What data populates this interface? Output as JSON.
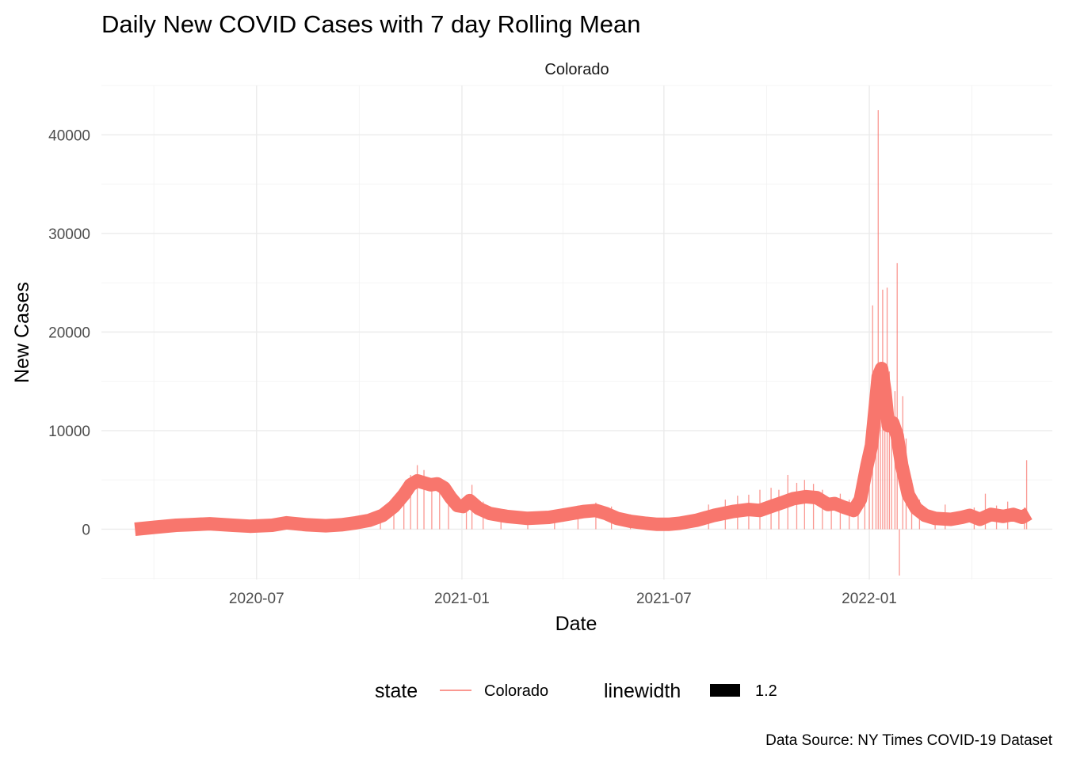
{
  "colors": {
    "series": "#F8766D",
    "daily_bars": "#F8766D",
    "rolling_line": "#F8766D",
    "linewidth_key": "#000000"
  },
  "chart_data": {
    "type": "line",
    "title": "Daily New COVID Cases with 7 day Rolling Mean",
    "facet": "Colorado",
    "xlabel": "Date",
    "ylabel": "New Cases",
    "caption": "Data Source: NY Times COVID-19 Dataset",
    "x_axis": {
      "type": "date",
      "ticks": [
        "2020-07-01",
        "2021-01-01",
        "2021-07-01",
        "2022-01-01"
      ],
      "tick_labels": [
        "2020-07",
        "2021-01",
        "2021-07",
        "2022-01"
      ],
      "range": [
        "2020-02-13",
        "2022-06-14"
      ]
    },
    "y_axis": {
      "ticks": [
        0,
        10000,
        20000,
        30000,
        40000
      ],
      "tick_labels": [
        "0",
        "10000",
        "20000",
        "30000",
        "40000"
      ],
      "range": [
        -5100,
        45000
      ]
    },
    "grid": true,
    "legend": {
      "placement": "bottom",
      "items": [
        {
          "title": "state",
          "label": "Colorado",
          "key": "line"
        },
        {
          "title": "linewidth",
          "label": "1.2",
          "key": "fill"
        }
      ]
    },
    "series": [
      {
        "name": "Colorado",
        "kind": "rolling_mean",
        "x": [
          "2020-03-14",
          "2020-04-01",
          "2020-04-20",
          "2020-05-01",
          "2020-05-20",
          "2020-06-10",
          "2020-06-25",
          "2020-07-15",
          "2020-07-28",
          "2020-08-15",
          "2020-09-01",
          "2020-09-15",
          "2020-09-28",
          "2020-10-10",
          "2020-10-22",
          "2020-11-01",
          "2020-11-10",
          "2020-11-16",
          "2020-11-22",
          "2020-11-28",
          "2020-12-04",
          "2020-12-10",
          "2020-12-16",
          "2020-12-22",
          "2020-12-28",
          "2021-01-02",
          "2021-01-08",
          "2021-01-16",
          "2021-01-26",
          "2021-02-10",
          "2021-03-01",
          "2021-03-20",
          "2021-04-05",
          "2021-04-20",
          "2021-05-01",
          "2021-05-10",
          "2021-05-20",
          "2021-06-01",
          "2021-06-15",
          "2021-06-25",
          "2021-07-05",
          "2021-07-15",
          "2021-07-30",
          "2021-08-15",
          "2021-09-01",
          "2021-09-15",
          "2021-09-25",
          "2021-10-05",
          "2021-10-15",
          "2021-10-25",
          "2021-11-05",
          "2021-11-15",
          "2021-11-25",
          "2021-12-01",
          "2021-12-10",
          "2021-12-18",
          "2021-12-24",
          "2021-12-30",
          "2022-01-03",
          "2022-01-06",
          "2022-01-09",
          "2022-01-12",
          "2022-01-15",
          "2022-01-18",
          "2022-01-22",
          "2022-01-26",
          "2022-01-30",
          "2022-02-05",
          "2022-02-12",
          "2022-02-20",
          "2022-03-01",
          "2022-03-15",
          "2022-03-25",
          "2022-04-01",
          "2022-04-10",
          "2022-04-20",
          "2022-05-01",
          "2022-05-10",
          "2022-05-18",
          "2022-05-24"
        ],
        "values": [
          0,
          200,
          400,
          450,
          550,
          400,
          300,
          400,
          650,
          450,
          350,
          450,
          650,
          900,
          1400,
          2300,
          3500,
          4500,
          4900,
          4700,
          4500,
          4600,
          4200,
          3200,
          2400,
          2300,
          2900,
          2100,
          1600,
          1300,
          1100,
          1200,
          1500,
          1800,
          1900,
          1600,
          1100,
          800,
          600,
          500,
          500,
          600,
          900,
          1400,
          1800,
          2000,
          1900,
          2300,
          2700,
          3100,
          3300,
          3200,
          2500,
          2600,
          2200,
          1900,
          3000,
          6500,
          8500,
          12000,
          15500,
          16300,
          14000,
          10500,
          10800,
          9500,
          6500,
          3500,
          2100,
          1400,
          1100,
          1000,
          1200,
          1400,
          1000,
          1500,
          1300,
          1500,
          1200,
          1600
        ]
      },
      {
        "name": "Colorado",
        "kind": "daily_new_cases",
        "x": [
          "2020-10-20",
          "2020-11-01",
          "2020-11-10",
          "2020-11-16",
          "2020-11-22",
          "2020-11-28",
          "2020-12-05",
          "2020-12-12",
          "2020-12-20",
          "2021-01-05",
          "2021-01-10",
          "2021-01-20",
          "2021-02-05",
          "2021-03-01",
          "2021-03-25",
          "2021-04-15",
          "2021-05-01",
          "2021-05-15",
          "2021-06-01",
          "2021-07-20",
          "2021-08-10",
          "2021-08-25",
          "2021-09-05",
          "2021-09-15",
          "2021-09-25",
          "2021-10-05",
          "2021-10-12",
          "2021-10-20",
          "2021-10-28",
          "2021-11-04",
          "2021-11-12",
          "2021-11-20",
          "2021-11-28",
          "2021-12-06",
          "2021-12-14",
          "2021-12-22",
          "2021-12-28",
          "2022-01-01",
          "2022-01-04",
          "2022-01-07",
          "2022-01-09",
          "2022-01-11",
          "2022-01-13",
          "2022-01-15",
          "2022-01-17",
          "2022-01-19",
          "2022-01-21",
          "2022-01-24",
          "2022-01-26",
          "2022-01-28",
          "2022-01-31",
          "2022-02-03",
          "2022-02-08",
          "2022-02-15",
          "2022-03-01",
          "2022-03-10",
          "2022-04-05",
          "2022-04-15",
          "2022-04-25",
          "2022-05-05",
          "2022-05-20",
          "2022-05-22"
        ],
        "values": [
          1200,
          2600,
          3900,
          5500,
          6500,
          6000,
          5200,
          4700,
          4000,
          3500,
          4500,
          2800,
          2000,
          1500,
          1600,
          2400,
          2700,
          2300,
          1500,
          1200,
          2500,
          3000,
          3400,
          3500,
          4000,
          4200,
          4000,
          5500,
          4700,
          5000,
          4600,
          4000,
          3000,
          3600,
          3000,
          3300,
          5600,
          7000,
          22700,
          9000,
          42500,
          13000,
          24300,
          12000,
          24500,
          16000,
          9000,
          14000,
          27000,
          -4700,
          13500,
          9200,
          5000,
          3000,
          1800,
          2500,
          2200,
          3600,
          2400,
          2800,
          2200,
          7000
        ]
      }
    ]
  }
}
